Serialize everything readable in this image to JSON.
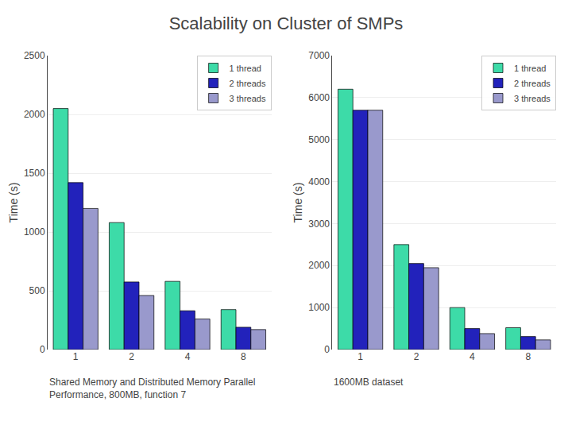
{
  "chart_data": [
    {
      "type": "bar",
      "title": "Scalability on Cluster of SMPs",
      "subtitle": "Shared Memory and Distributed Memory Parallel\nPerformance, 800MB, function 7",
      "categories": [
        "1",
        "2",
        "4",
        "8"
      ],
      "series": [
        {
          "name": "1 thread",
          "color": "#3DDBA8",
          "values": [
            2050,
            1080,
            580,
            340
          ]
        },
        {
          "name": "2 threads",
          "color": "#2222BB",
          "values": [
            1420,
            575,
            330,
            190
          ]
        },
        {
          "name": "3 threads",
          "color": "#9999CC",
          "values": [
            1200,
            460,
            260,
            170
          ]
        }
      ],
      "ylabel": "Time (s)",
      "ylim": [
        0,
        2500
      ],
      "yticks": [
        0,
        500,
        1000,
        1500,
        2000,
        2500
      ],
      "grid": true,
      "legend": "upper right"
    },
    {
      "type": "bar",
      "subtitle": "1600MB dataset",
      "categories": [
        "1",
        "2",
        "4",
        "8"
      ],
      "series": [
        {
          "name": "1 thread",
          "color": "#3DDBA8",
          "values": [
            6200,
            2500,
            1000,
            520
          ]
        },
        {
          "name": "2 threads",
          "color": "#2222BB",
          "values": [
            5700,
            2050,
            500,
            310
          ]
        },
        {
          "name": "3 threads",
          "color": "#9999CC",
          "values": [
            5700,
            1950,
            380,
            230
          ]
        }
      ],
      "ylabel": "Time (s)",
      "ylim": [
        0,
        7000
      ],
      "yticks": [
        0,
        1000,
        2000,
        3000,
        4000,
        5000,
        6000,
        7000
      ],
      "grid": true,
      "legend": "upper right"
    }
  ]
}
